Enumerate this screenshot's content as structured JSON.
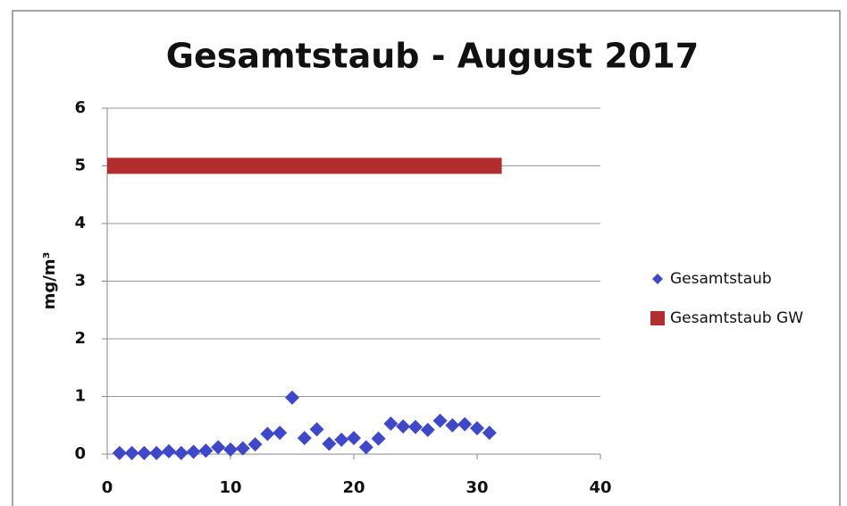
{
  "chart_data": {
    "type": "scatter",
    "title": "Gesamtstaub -  August 2017",
    "y_label": "mg/m³",
    "xlim": [
      0,
      40
    ],
    "xticks": [
      0,
      10,
      20,
      30,
      40
    ],
    "ylim": [
      0,
      6
    ],
    "yticks": [
      0,
      1,
      2,
      3,
      4,
      5,
      6
    ],
    "grid": true,
    "legend": "right",
    "series": [
      {
        "name": "Gesamtstaub",
        "color": "#3f48c8",
        "mode": "markers",
        "x": [
          1,
          2,
          3,
          4,
          5,
          6,
          7,
          8,
          9,
          10,
          11,
          12,
          13,
          14,
          15,
          16,
          17,
          18,
          19,
          20,
          21,
          22,
          23,
          24,
          25,
          26,
          27,
          28,
          29,
          30,
          31
        ],
        "values": [
          0.02,
          0.02,
          0.02,
          0.02,
          0.05,
          0.02,
          0.04,
          0.06,
          0.12,
          0.08,
          0.1,
          0.17,
          0.35,
          0.37,
          0.98,
          0.28,
          0.43,
          0.18,
          0.25,
          0.28,
          0.12,
          0.27,
          0.53,
          0.48,
          0.47,
          0.42,
          0.58,
          0.5,
          0.52,
          0.45,
          0.37
        ]
      },
      {
        "name": "Gesamtstaub GW",
        "color": "#b22d2d",
        "mode": "line",
        "x": [
          0,
          32
        ],
        "values": [
          5,
          5
        ]
      }
    ]
  }
}
